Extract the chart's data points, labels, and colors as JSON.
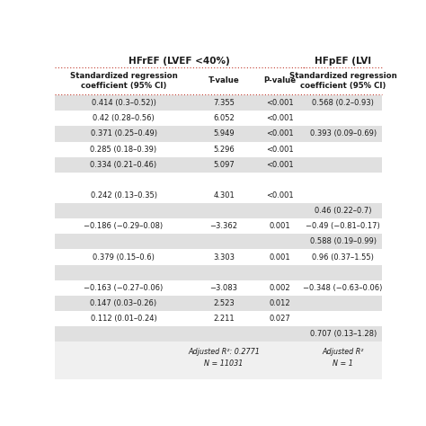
{
  "title_left": "HFrEF (LVEF <40%)",
  "title_right": "HFpEF (LVI",
  "col_headers": [
    "Standardized regression\ncoefficient (95% CI)",
    "T-value",
    "P-value",
    "Standardized regression\ncoefficient (95% CI)"
  ],
  "rows": [
    {
      "hfref_coef": "0.414 (0.3–0.52))",
      "hfref_t": "7.355",
      "hfref_p": "<0.001",
      "hfpef_coef": "0.568 (0.2–0.93)",
      "shade": true
    },
    {
      "hfref_coef": "0.42 (0.28–0.56)",
      "hfref_t": "6.052",
      "hfref_p": "<0.001",
      "hfpef_coef": "",
      "shade": false
    },
    {
      "hfref_coef": "0.371 (0.25–0.49)",
      "hfref_t": "5.949",
      "hfref_p": "<0.001",
      "hfpef_coef": "0.393 (0.09–0.69)",
      "shade": true
    },
    {
      "hfref_coef": "0.285 (0.18–0.39)",
      "hfref_t": "5.296",
      "hfref_p": "<0.001",
      "hfpef_coef": "",
      "shade": false
    },
    {
      "hfref_coef": "0.334 (0.21–0.46)",
      "hfref_t": "5.097",
      "hfref_p": "<0.001",
      "hfpef_coef": "",
      "shade": true
    },
    {
      "hfref_coef": "",
      "hfref_t": "",
      "hfref_p": "",
      "hfpef_coef": "",
      "shade": false
    },
    {
      "hfref_coef": "0.242 (0.13–0.35)",
      "hfref_t": "4.301",
      "hfref_p": "<0.001",
      "hfpef_coef": "",
      "shade": false
    },
    {
      "hfref_coef": "",
      "hfref_t": "",
      "hfref_p": "",
      "hfpef_coef": "0.46 (0.22–0.7)",
      "shade": true
    },
    {
      "hfref_coef": "−0.186 (−0.29–0.08)",
      "hfref_t": "−3.362",
      "hfref_p": "0.001",
      "hfpef_coef": "−0.49 (−0.81–0.17)",
      "shade": false
    },
    {
      "hfref_coef": "",
      "hfref_t": "",
      "hfref_p": "",
      "hfpef_coef": "0.588 (0.19–0.99)",
      "shade": true
    },
    {
      "hfref_coef": "0.379 (0.15–0.6)",
      "hfref_t": "3.303",
      "hfref_p": "0.001",
      "hfpef_coef": "0.96 (0.37–1.55)",
      "shade": false
    },
    {
      "hfref_coef": "",
      "hfref_t": "",
      "hfref_p": "",
      "hfpef_coef": "",
      "shade": true
    },
    {
      "hfref_coef": "−0.163 (−0.27–0.06)",
      "hfref_t": "−3.083",
      "hfref_p": "0.002",
      "hfpef_coef": "−0.348 (−0.63–0.06)",
      "shade": false
    },
    {
      "hfref_coef": "0.147 (0.03–0.26)",
      "hfref_t": "2.523",
      "hfref_p": "0.012",
      "hfpef_coef": "",
      "shade": true
    },
    {
      "hfref_coef": "0.112 (0.01–0.24)",
      "hfref_t": "2.211",
      "hfref_p": "0.027",
      "hfpef_coef": "",
      "shade": false
    },
    {
      "hfref_coef": "",
      "hfref_t": "",
      "hfref_p": "",
      "hfpef_coef": "0.707 (0.13–1.28)",
      "shade": true
    }
  ],
  "footer_left": "Adjusted R²: 0.2771\nN = 11031",
  "footer_right": "Adjusted R²\nN = 1",
  "bg_color": "#f0f0f0",
  "shade_color": "#e0e0e0",
  "white_color": "#ffffff",
  "header_line_color": "#c0392b",
  "text_color": "#1a1a1a",
  "title_color": "#1a1a1a",
  "fig_width": 4.74,
  "fig_height": 4.74,
  "dpi": 100
}
